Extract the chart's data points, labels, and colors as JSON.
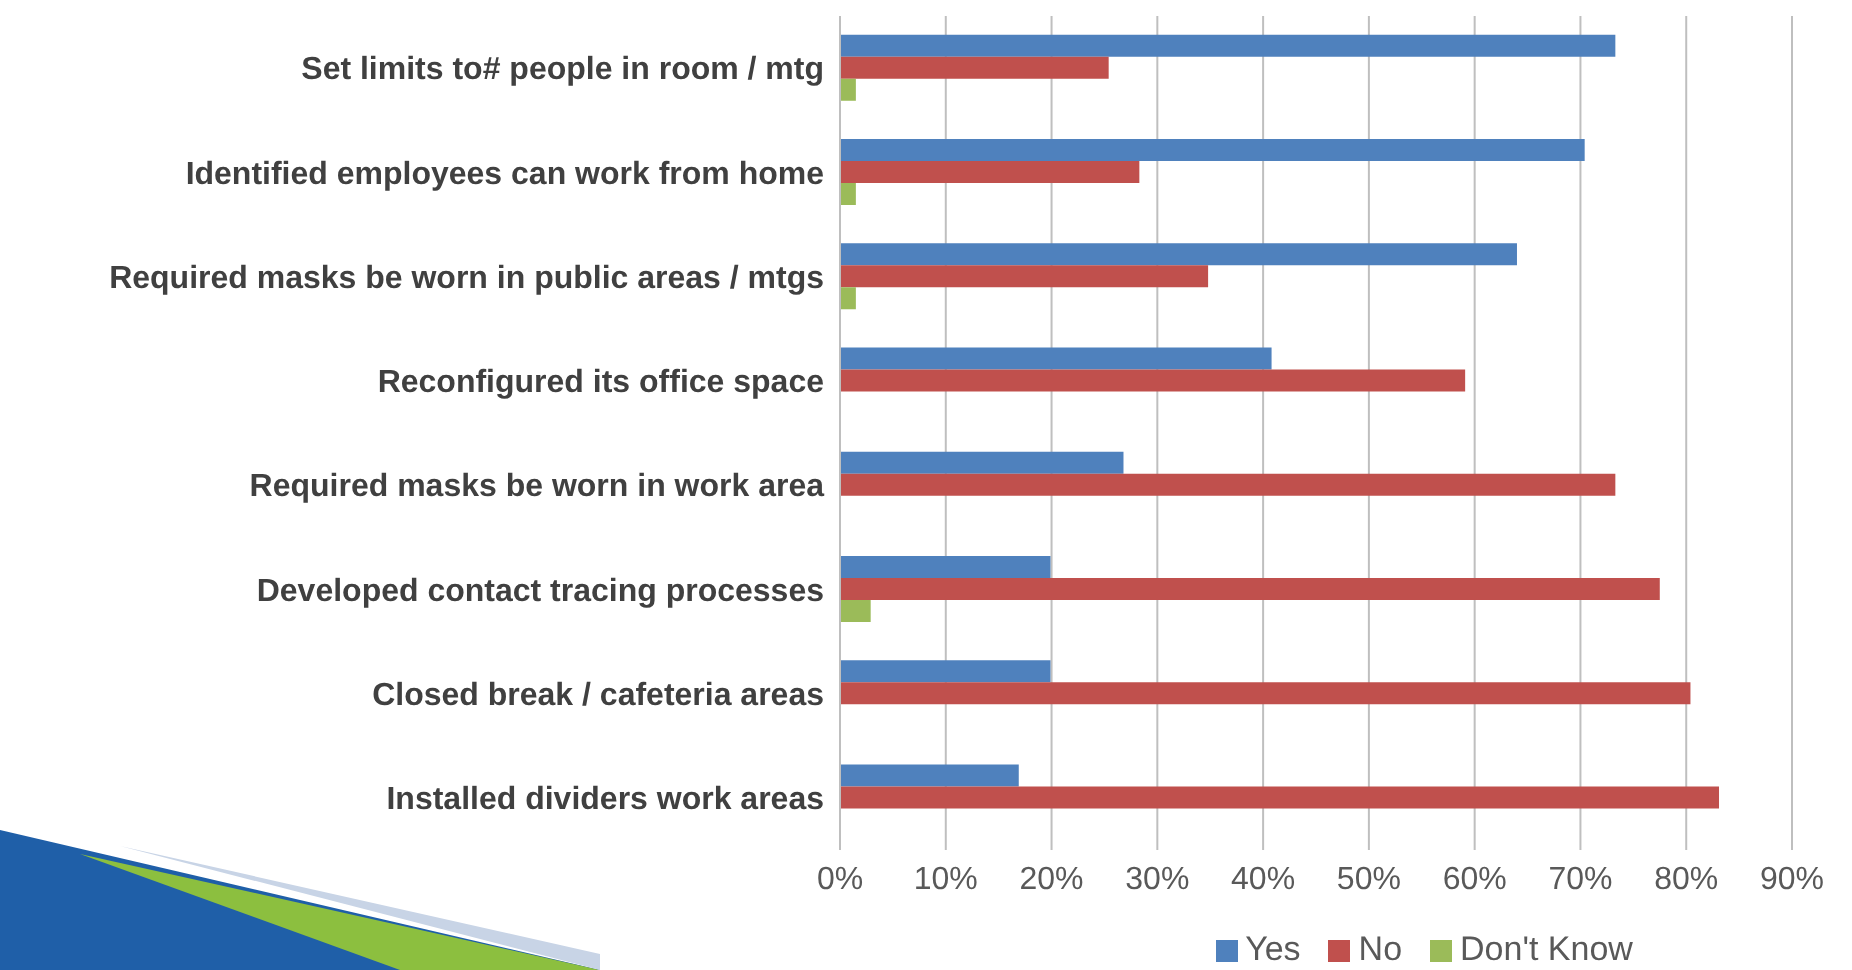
{
  "chart_data": {
    "type": "bar",
    "orientation": "horizontal",
    "categories": [
      "Set limits to# people in room / mtg",
      "Identified employees can work from home",
      "Required masks be worn in public areas / mtgs",
      "Reconfigured its office space",
      "Required masks be worn in work area",
      "Developed contact tracing processes",
      "Closed break / cafeteria areas",
      "Installed dividers work areas"
    ],
    "series": [
      {
        "name": "Yes",
        "color": "#4f81bd",
        "values": [
          73.3,
          70.4,
          64.0,
          40.8,
          26.8,
          19.9,
          19.9,
          16.9
        ]
      },
      {
        "name": "No",
        "color": "#c0504d",
        "values": [
          25.4,
          28.3,
          34.8,
          59.1,
          73.3,
          77.5,
          80.4,
          83.1
        ]
      },
      {
        "name": "Don't Know",
        "color": "#9bbb59",
        "values": [
          1.5,
          1.5,
          1.5,
          null,
          null,
          2.9,
          null,
          null
        ]
      }
    ],
    "xlim": [
      0,
      90
    ],
    "xticks": [
      {
        "value": 0,
        "label": "0%"
      },
      {
        "value": 10,
        "label": "10%"
      },
      {
        "value": 20,
        "label": "20%"
      },
      {
        "value": 30,
        "label": "30%"
      },
      {
        "value": 40,
        "label": "40%"
      },
      {
        "value": 50,
        "label": "50%"
      },
      {
        "value": 60,
        "label": "60%"
      },
      {
        "value": 70,
        "label": "70%"
      },
      {
        "value": 80,
        "label": "80%"
      },
      {
        "value": 90,
        "label": "90%"
      }
    ],
    "grid": "x",
    "legend": "bottom"
  }
}
